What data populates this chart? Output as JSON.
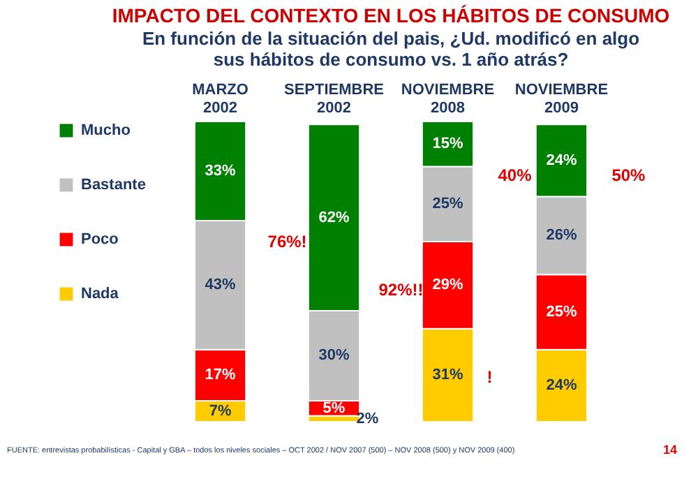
{
  "chart_data": {
    "type": "bar",
    "title": "IMPACTO DEL CONTEXTO EN LOS HÁBITOS DE CONSUMO",
    "subtitle": "En función de la situación del pais, ¿Ud. modificó en algo sus hábitos de consumo vs. 1 año atrás?",
    "categories": [
      "MARZO 2002",
      "SEPTIEMBRE 2002",
      "NOVIEMBRE 2008",
      "NOVIEMBRE 2009"
    ],
    "stacked": true,
    "legend": "left",
    "grid": false,
    "series": [
      {
        "name": "Nada",
        "color": "#ffcc00",
        "values": [
          7,
          2,
          31,
          24
        ],
        "value_labels": [
          "7%",
          "2%",
          "31%",
          "24%"
        ]
      },
      {
        "name": "Poco",
        "color": "#ff0000",
        "values": [
          17,
          5,
          29,
          25
        ],
        "value_labels": [
          "17%",
          "5%",
          "29%",
          "25%"
        ]
      },
      {
        "name": "Bastante",
        "color": "#c0c0c0",
        "values": [
          43,
          30,
          25,
          26
        ],
        "value_labels": [
          "43%",
          "30%",
          "25%",
          "26%"
        ]
      },
      {
        "name": "Mucho",
        "color": "#008000",
        "values": [
          33,
          62,
          15,
          24
        ],
        "value_labels": [
          "33%",
          "62%",
          "15%",
          "24%"
        ]
      }
    ],
    "annotations": [
      "76%!",
      "92%!!",
      "40%",
      "50%",
      "!",
      "FUENTE: entrevistas probabilísticas - Capital y GBA – todos los niveles sociales – OCT 2002 / NOV 2007 (500) – NOV 2008 (500) y NOV 2009 (400)",
      "14"
    ]
  }
}
